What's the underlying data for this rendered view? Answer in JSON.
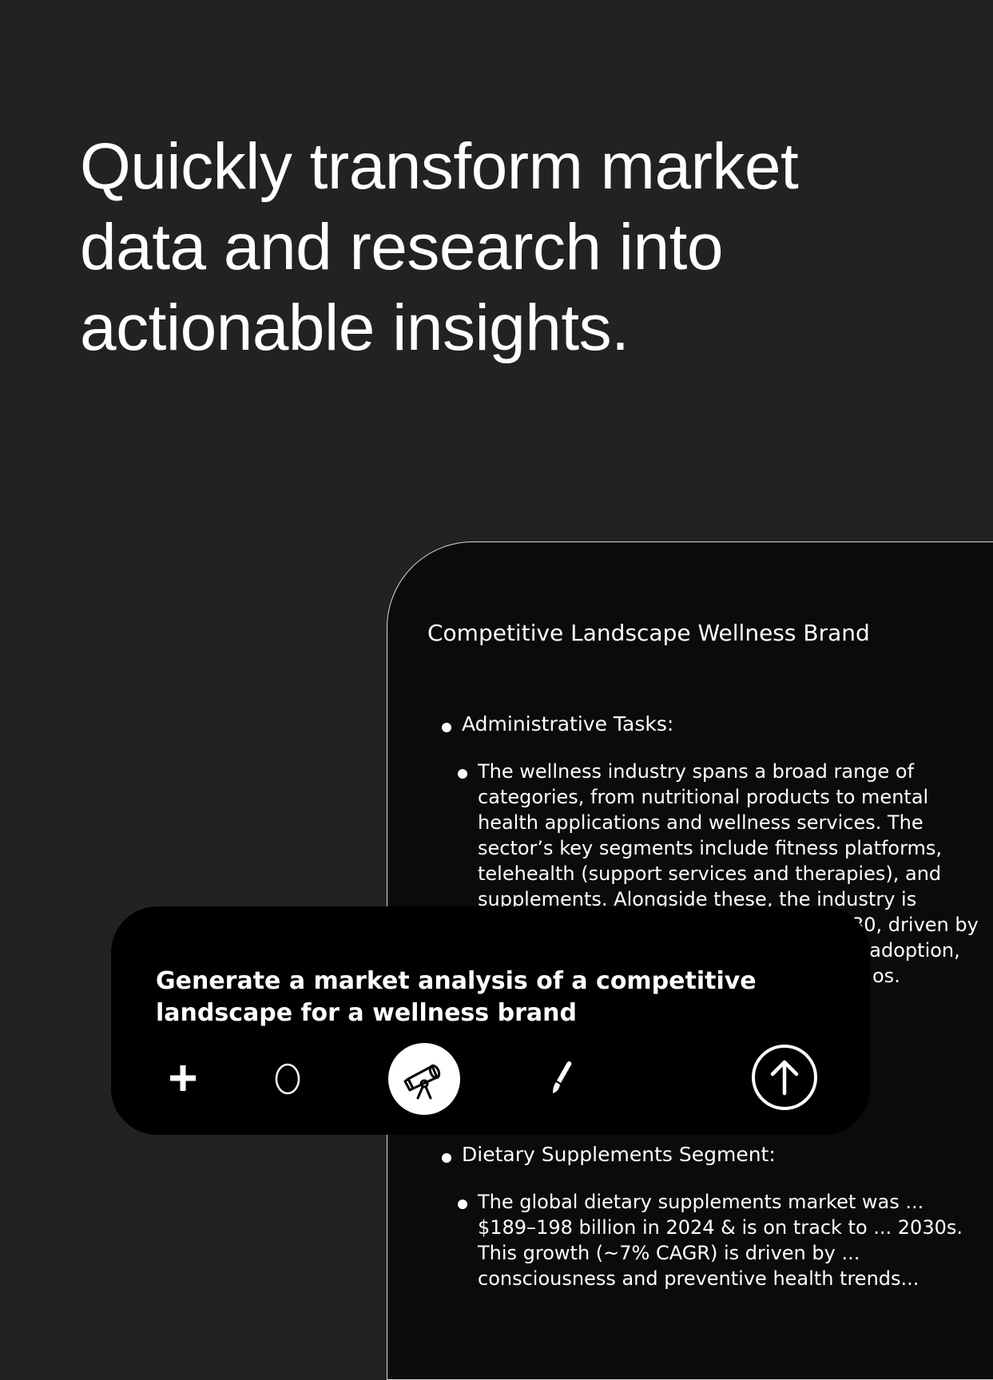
{
  "headline": {
    "lines": [
      "Quickly transform market",
      "data and research into",
      "actionable insights."
    ]
  },
  "document": {
    "title": "Competitive Landscape Wellness Brand",
    "section1": {
      "heading": "Administrative Tasks:",
      "body_lines": [
        "The wellness industry spans a broad range of",
        "categories, from nutritional products to mental",
        "health applications and wellness services. The",
        "sector’s key segments include fitness platforms,",
        "telehealth (support services and therapies), and",
        "supplements. Alongside these, the industry is",
        "",
        "",
        ""
      ],
      "partial_fragments": [
        "30, driven by",
        "l adoption,",
        "os."
      ]
    },
    "section2": {
      "heading": "Dietary Supplements Segment:",
      "body_lines": [
        "The global dietary supplements market was ...",
        "$189–198 billion in 2024 & is on track to ... 2030s.",
        "This growth (~7% CAGR) is driven by ...",
        "consciousness and preventive health trends..."
      ]
    }
  },
  "prompt": {
    "text_lines": [
      "Generate a market analysis of a competitive",
      "landscape for a wellness brand"
    ],
    "tools": {
      "add": "plus-icon",
      "reasoning": "lightbulb-outline-icon",
      "research": "telescope-icon",
      "canvas": "paintbrush-icon",
      "send": "arrow-up-circle-icon"
    }
  },
  "colors": {
    "background": "#222222",
    "document_bg": "#0c0b0c",
    "prompt_bg": "#000000",
    "text": "#ffffff"
  }
}
